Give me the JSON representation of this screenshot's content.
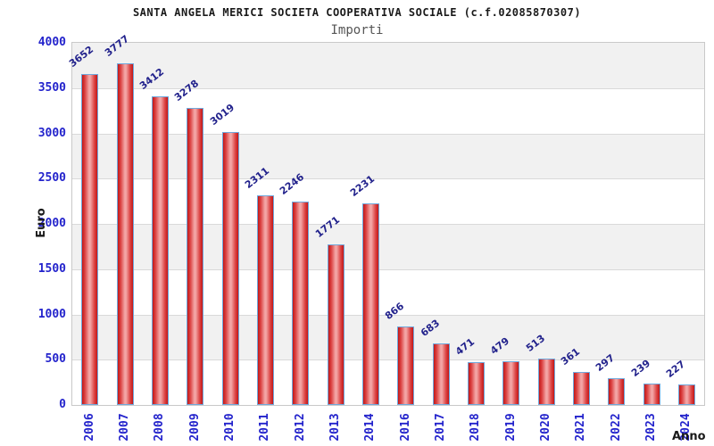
{
  "chart_data": {
    "type": "bar",
    "title": "SANTA ANGELA MERICI SOCIETA COOPERATIVA SOCIALE (c.f.02085870307)",
    "subtitle": "Importi",
    "xlabel": "Anno",
    "ylabel": "Euro",
    "categories": [
      "2006",
      "2007",
      "2008",
      "2009",
      "2010",
      "2011",
      "2012",
      "2013",
      "2014",
      "2016",
      "2017",
      "2018",
      "2019",
      "2020",
      "2021",
      "2022",
      "2023",
      "2024"
    ],
    "values": [
      3652,
      3777,
      3412,
      3278,
      3019,
      2311,
      2246,
      1771,
      2231,
      866,
      683,
      471,
      479,
      513,
      361,
      297,
      239,
      227
    ],
    "ylim": [
      0,
      4000
    ],
    "yticks": [
      0,
      500,
      1000,
      1500,
      2000,
      2500,
      3000,
      3500,
      4000
    ],
    "grid": "horizontal-bands",
    "legend": "none",
    "colors": {
      "bar_edge": "#c11818",
      "bar_mid": "#db4040",
      "bar_highlight": "#f3a5a5",
      "bar_border": "#6fa8dc",
      "band_shade": "#f1f1f1",
      "band_plain": "#ffffff",
      "gridline": "#d9d9d9",
      "plot_border": "#c9c9c9",
      "tick_label_blue": "#2323cc",
      "value_label_navy": "#22228c",
      "axis_title_color": "#1a1a1a",
      "title_color": "#1a1a1a",
      "subtitle_color": "#555555"
    }
  }
}
